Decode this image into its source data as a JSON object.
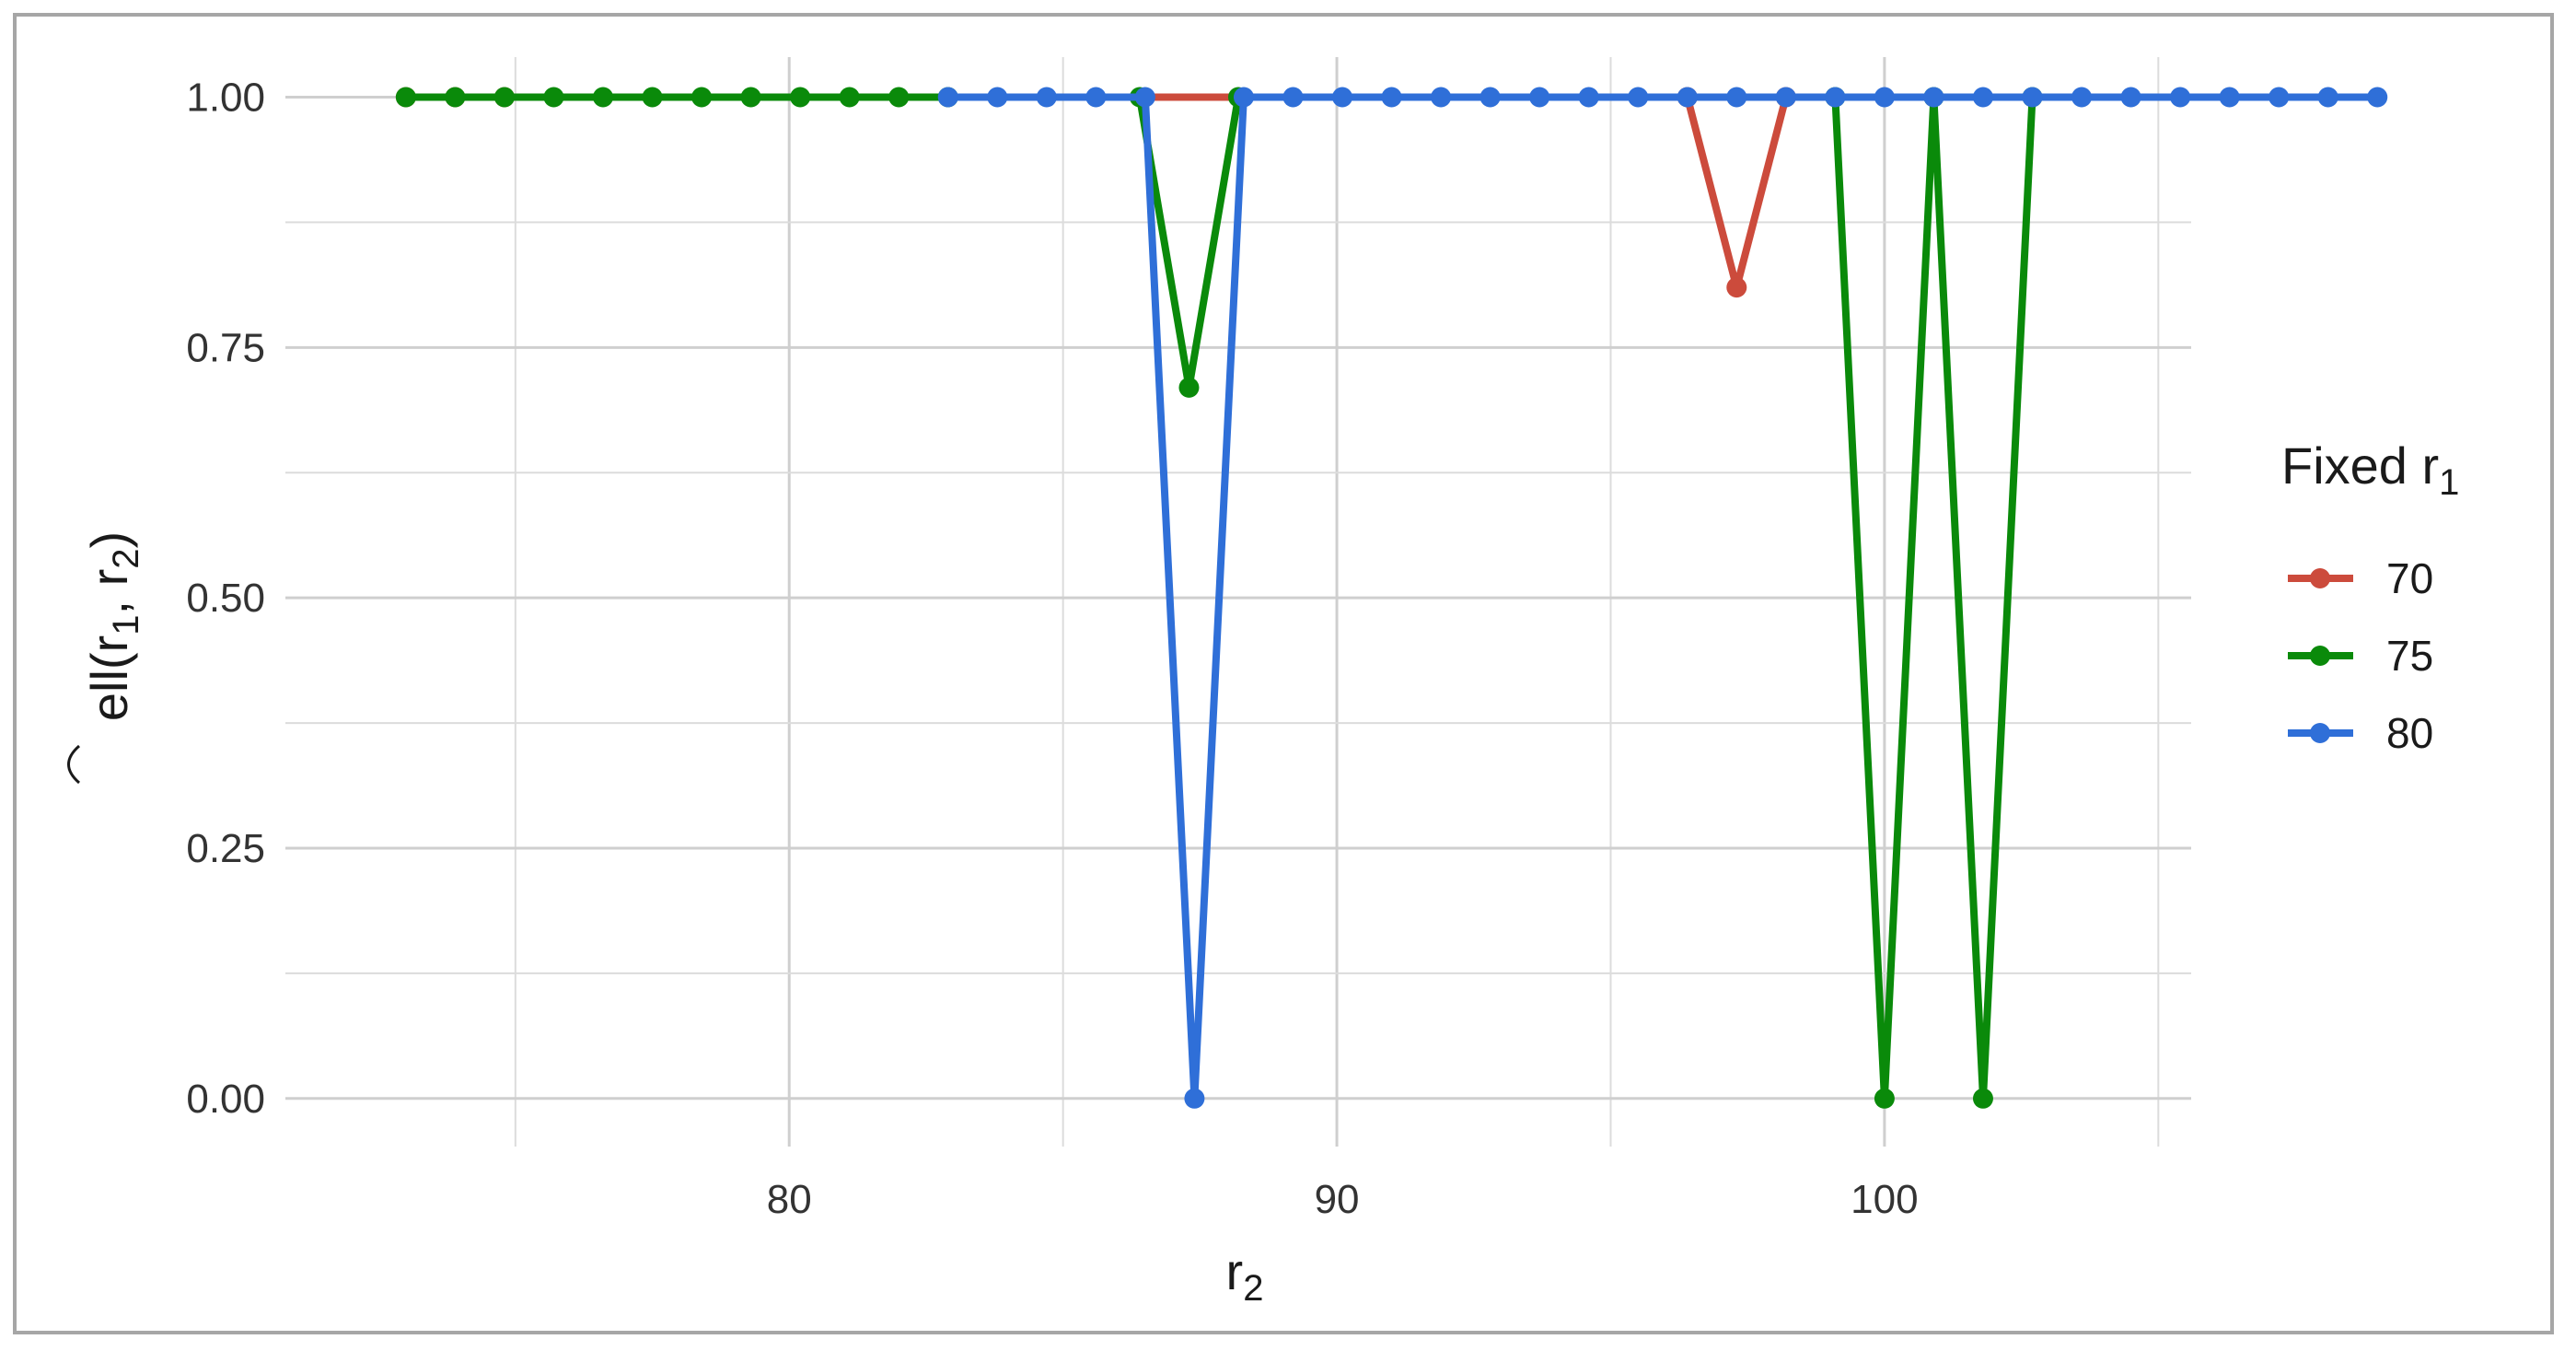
{
  "chart_data": {
    "type": "line",
    "xlabel": "r",
    "xlabel_sub": "2",
    "ylabel_parts": {
      "base": "ell(r",
      "sub1": "1",
      "mid": ", r",
      "sub2": "2",
      "end": ")"
    },
    "xlim": [
      70.8,
      105.6
    ],
    "ylim": [
      -0.048,
      1.04
    ],
    "x_ticks": [
      80,
      90,
      100
    ],
    "x_tick_labels": [
      "80",
      "90",
      "100"
    ],
    "y_ticks": [
      0,
      0.25,
      0.5,
      0.75,
      1
    ],
    "y_tick_labels": [
      "0.00",
      "0.25",
      "0.50",
      "0.75",
      "1.00"
    ],
    "grid": true,
    "legend": {
      "title": "Fixed r",
      "title_sub": "1",
      "position": "right"
    },
    "series": [
      {
        "name": "70",
        "color": "#cc4b3c",
        "x": [
          73.0,
          73.9,
          74.8,
          96.4,
          97.3,
          98.2
        ],
        "y": [
          1,
          1,
          1,
          1,
          0.81,
          1
        ]
      },
      {
        "name": "75",
        "color": "#0a8a0a",
        "x": [
          73.0,
          73.9,
          74.8,
          75.7,
          76.6,
          77.5,
          78.4,
          79.3,
          80.2,
          81.1,
          82.0,
          82.9,
          86.4,
          87.3,
          88.2,
          99.1,
          100.0,
          100.9,
          101.8,
          102.7
        ],
        "y": [
          1,
          1,
          1,
          1,
          1,
          1,
          1,
          1,
          1,
          1,
          1,
          1,
          1,
          0.71,
          1,
          1,
          0,
          1,
          0,
          1
        ]
      },
      {
        "name": "80",
        "color": "#2f6fd8",
        "x": [
          82.9,
          83.8,
          84.7,
          85.6,
          86.5,
          87.4,
          88.3,
          89.2,
          90.1,
          91.0,
          91.9,
          92.8,
          93.7,
          94.6,
          95.5,
          96.4,
          97.3,
          98.2,
          99.1,
          100.0,
          100.9,
          101.8,
          102.7,
          103.6,
          104.5,
          105.4,
          106.3,
          107.2,
          108.1,
          109.0
        ],
        "y": [
          1,
          1,
          1,
          1,
          1,
          0,
          1,
          1,
          1,
          1,
          1,
          1,
          1,
          1,
          1,
          1,
          1,
          1,
          1,
          1,
          1,
          1,
          1,
          1,
          1,
          1,
          1,
          1,
          1,
          1
        ]
      }
    ]
  }
}
